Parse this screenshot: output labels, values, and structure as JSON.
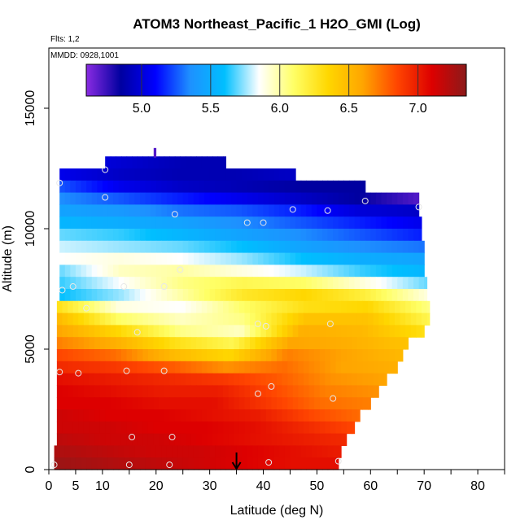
{
  "chart_data": {
    "type": "heatmap",
    "title": "ATOM3 Northeast_Pacific_1 H2O_GMI (Log)",
    "flights_label": "Flts: 1,2",
    "date_label": "MMDD: 0928,1001",
    "xlabel": "Latitude (deg N)",
    "ylabel": "Altitude (m)",
    "xlim": [
      0,
      85
    ],
    "ylim": [
      0,
      17500
    ],
    "x_ticks": [
      0,
      5,
      10,
      20,
      30,
      40,
      50,
      60,
      70,
      80
    ],
    "x_tick_labels": [
      "0",
      "5",
      "10",
      "20",
      "30",
      "40",
      "50",
      "60",
      "70",
      "80"
    ],
    "x_minor_ticks": [
      15,
      25,
      35,
      45,
      55,
      65,
      75,
      85
    ],
    "y_ticks": [
      0,
      5000,
      10000,
      15000
    ],
    "y_tick_labels": [
      "0",
      "5000",
      "10000",
      "15000"
    ],
    "colorbar": {
      "range": [
        4.6,
        7.35
      ],
      "ticks": [
        5.0,
        5.5,
        6.0,
        6.5,
        7.0
      ],
      "tick_labels": [
        "5.0",
        "5.5",
        "6.0",
        "6.5",
        "7.0"
      ],
      "colors": [
        "#8a2be2",
        "#0000a0",
        "#0000ff",
        "#1e90ff",
        "#00bfff",
        "#ffffff",
        "#ffff66",
        "#ffd700",
        "#ffa500",
        "#ff4500",
        "#dd0000",
        "#8b1a1a"
      ]
    },
    "marker_latitude": 35,
    "layers": [
      {
        "alt": 12500,
        "lat_min": 10.5,
        "lat_max": 33,
        "values": [
          5.0,
          4.95,
          4.9,
          4.9
        ]
      },
      {
        "alt": 12000,
        "lat_min": 2,
        "lat_max": 46,
        "values": [
          5.05,
          4.95,
          4.9,
          4.9,
          4.95
        ]
      },
      {
        "alt": 11500,
        "lat_min": 2,
        "lat_max": 59,
        "values": [
          5.25,
          5.05,
          4.95,
          4.9,
          4.85,
          4.85
        ]
      },
      {
        "alt": 11000,
        "lat_min": 2,
        "lat_max": 69,
        "values": [
          5.35,
          5.25,
          5.15,
          5.05,
          4.95,
          4.85,
          4.7
        ]
      },
      {
        "alt": 10500,
        "lat_min": 2,
        "lat_max": 69,
        "values": [
          5.45,
          5.4,
          5.3,
          5.25,
          5.15,
          5.0,
          4.95
        ]
      },
      {
        "alt": 10000,
        "lat_min": 2,
        "lat_max": 69.5,
        "values": [
          5.55,
          5.5,
          5.45,
          5.35,
          5.25,
          5.15,
          5.05
        ]
      },
      {
        "alt": 9500,
        "lat_min": 2,
        "lat_max": 69.5,
        "values": [
          5.7,
          5.65,
          5.55,
          5.45,
          5.35,
          5.25,
          5.15
        ]
      },
      {
        "alt": 9000,
        "lat_min": 2,
        "lat_max": 70,
        "values": [
          5.8,
          5.75,
          5.7,
          5.6,
          5.45,
          5.35,
          5.3
        ]
      },
      {
        "alt": 8500,
        "lat_min": 2,
        "lat_max": 70,
        "values": [
          5.85,
          5.9,
          5.85,
          5.75,
          5.6,
          5.5,
          5.45
        ]
      },
      {
        "alt": 8000,
        "lat_min": 2,
        "lat_max": 70,
        "values": [
          5.7,
          5.95,
          6.0,
          5.9,
          5.8,
          5.65,
          5.55
        ]
      },
      {
        "alt": 7500,
        "lat_min": 2,
        "lat_max": 70.5,
        "values": [
          5.65,
          5.85,
          6.05,
          6.15,
          6.1,
          5.9,
          5.7
        ]
      },
      {
        "alt": 7000,
        "lat_min": 2,
        "lat_max": 70.5,
        "values": [
          5.6,
          5.75,
          6.0,
          6.25,
          6.35,
          6.2,
          5.9
        ]
      },
      {
        "alt": 6500,
        "lat_min": 1.5,
        "lat_max": 71,
        "values": [
          6.3,
          5.9,
          5.85,
          6.1,
          6.3,
          6.35,
          6.05
        ]
      },
      {
        "alt": 6000,
        "lat_min": 1.5,
        "lat_max": 71,
        "values": [
          6.5,
          6.1,
          5.95,
          6.05,
          6.45,
          6.45,
          6.15
        ]
      },
      {
        "alt": 5500,
        "lat_min": 1.5,
        "lat_max": 70,
        "values": [
          6.6,
          6.35,
          6.05,
          5.95,
          6.55,
          6.5,
          6.3
        ]
      },
      {
        "alt": 5000,
        "lat_min": 1.5,
        "lat_max": 67,
        "values": [
          6.7,
          6.55,
          6.3,
          6.15,
          6.6,
          6.55,
          6.45
        ]
      },
      {
        "alt": 4500,
        "lat_min": 1.5,
        "lat_max": 66,
        "values": [
          6.85,
          6.75,
          6.5,
          6.35,
          6.7,
          6.6,
          6.5
        ]
      },
      {
        "alt": 4000,
        "lat_min": 1.5,
        "lat_max": 65,
        "values": [
          6.95,
          6.9,
          6.8,
          6.65,
          6.75,
          6.6,
          6.55
        ]
      },
      {
        "alt": 3500,
        "lat_min": 1.5,
        "lat_max": 63,
        "values": [
          7.05,
          7.0,
          6.95,
          6.9,
          6.8,
          6.65,
          6.6
        ]
      },
      {
        "alt": 3000,
        "lat_min": 1.5,
        "lat_max": 61.5,
        "values": [
          7.1,
          7.05,
          7.0,
          7.0,
          6.85,
          6.7,
          6.65
        ]
      },
      {
        "alt": 2500,
        "lat_min": 1.5,
        "lat_max": 60,
        "values": [
          7.1,
          7.1,
          7.05,
          7.05,
          6.9,
          6.75,
          6.7
        ]
      },
      {
        "alt": 2000,
        "lat_min": 1.5,
        "lat_max": 58,
        "values": [
          7.15,
          7.1,
          7.1,
          7.05,
          7.0,
          6.85,
          6.75
        ]
      },
      {
        "alt": 1500,
        "lat_min": 1.5,
        "lat_max": 57,
        "values": [
          7.15,
          7.15,
          7.1,
          7.1,
          7.05,
          6.95,
          6.85
        ]
      },
      {
        "alt": 1000,
        "lat_min": 1.5,
        "lat_max": 55.5,
        "values": [
          7.2,
          7.15,
          7.15,
          7.1,
          7.05,
          7.0,
          6.95
        ]
      },
      {
        "alt": 500,
        "lat_min": 1,
        "lat_max": 54.5,
        "values": [
          7.25,
          7.2,
          7.15,
          7.15,
          7.1,
          7.05,
          7.0
        ]
      },
      {
        "alt": 0,
        "lat_min": 1,
        "lat_max": 54,
        "values": [
          7.3,
          7.25,
          7.2,
          7.15,
          7.1,
          7.05,
          7.05
        ]
      }
    ],
    "points": [
      {
        "lat": 10.5,
        "alt": 12450
      },
      {
        "lat": 2,
        "alt": 11900
      },
      {
        "lat": 10.5,
        "alt": 11300
      },
      {
        "lat": 59,
        "alt": 11150
      },
      {
        "lat": 45.5,
        "alt": 10800
      },
      {
        "lat": 52,
        "alt": 10750
      },
      {
        "lat": 69,
        "alt": 10900
      },
      {
        "lat": 23.5,
        "alt": 10600
      },
      {
        "lat": 37,
        "alt": 10250
      },
      {
        "lat": 40,
        "alt": 10250
      },
      {
        "lat": 24.5,
        "alt": 8300
      },
      {
        "lat": 14,
        "alt": 7600
      },
      {
        "lat": 4.5,
        "alt": 7600
      },
      {
        "lat": 21.5,
        "alt": 7600
      },
      {
        "lat": 2.5,
        "alt": 7450
      },
      {
        "lat": 7,
        "alt": 6700
      },
      {
        "lat": 39,
        "alt": 6050
      },
      {
        "lat": 40.5,
        "alt": 5950
      },
      {
        "lat": 52.5,
        "alt": 6050
      },
      {
        "lat": 16.5,
        "alt": 5700
      },
      {
        "lat": 2,
        "alt": 4050
      },
      {
        "lat": 5.5,
        "alt": 4000
      },
      {
        "lat": 14.5,
        "alt": 4100
      },
      {
        "lat": 21.5,
        "alt": 4100
      },
      {
        "lat": 41.5,
        "alt": 3450
      },
      {
        "lat": 39,
        "alt": 3150
      },
      {
        "lat": 53,
        "alt": 2950
      },
      {
        "lat": 15.5,
        "alt": 1350
      },
      {
        "lat": 23,
        "alt": 1350
      },
      {
        "lat": 15,
        "alt": 200
      },
      {
        "lat": 22.5,
        "alt": 200
      },
      {
        "lat": 41,
        "alt": 300
      },
      {
        "lat": 54,
        "alt": 350
      },
      {
        "lat": 1,
        "alt": 200
      }
    ],
    "spikes": [
      {
        "lat": 19.8,
        "alt": 12950,
        "value": 4.7
      }
    ]
  }
}
